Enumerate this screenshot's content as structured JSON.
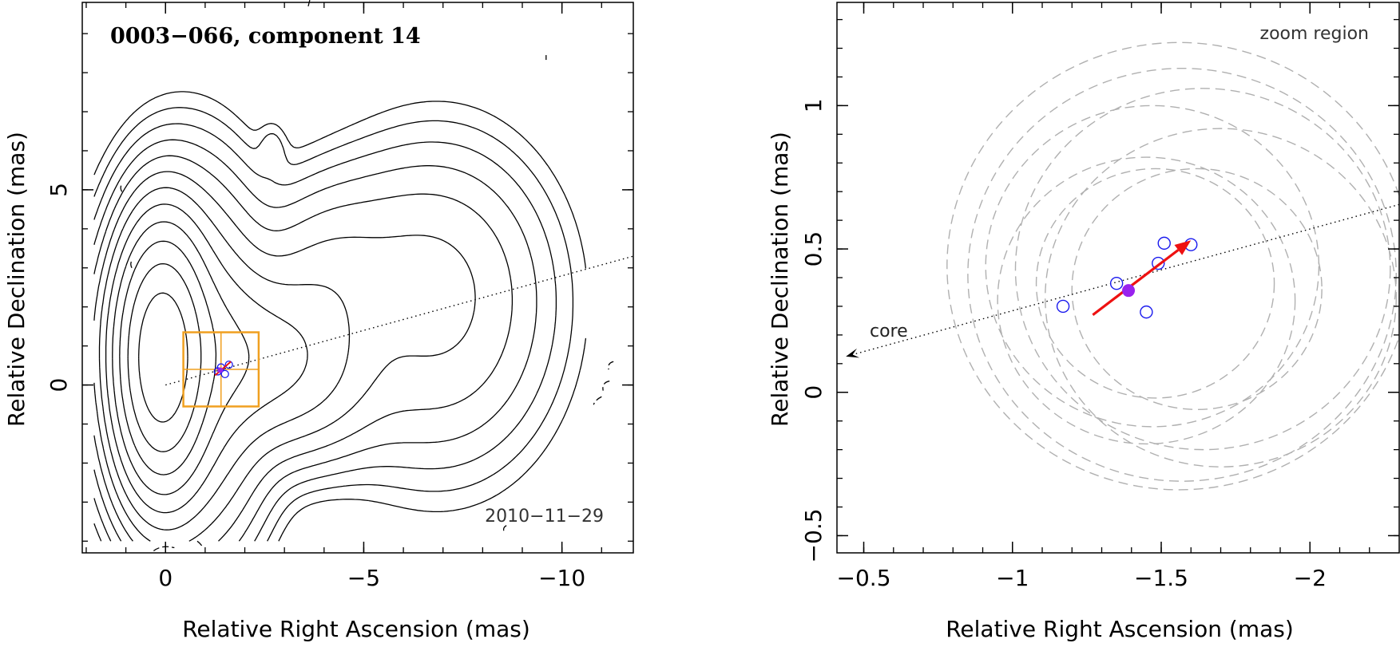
{
  "chart_data": [
    {
      "type": "contour",
      "title": "0003−066, component 14",
      "epoch": "2010−11−29",
      "xlabel": "Relative Right Ascension (mas)",
      "ylabel": "Relative Declination (mas)",
      "xlim": [
        2.1,
        -11.8
      ],
      "ylim": [
        -4.3,
        9.8
      ],
      "xticks": [
        0,
        -5,
        -10
      ],
      "xtick_labels": [
        "0",
        "−5",
        "−10"
      ],
      "yticks": [
        0,
        5
      ],
      "ytick_labels": [
        "0",
        "5"
      ],
      "contour_levels": 14,
      "contour_color": "#000000",
      "peak": {
        "x": 0.1,
        "y": 0.7
      },
      "secondary_peak": {
        "x": -6.9,
        "y": 2.0
      },
      "jet_axis": {
        "from": [
          0.0,
          0.0
        ],
        "to": [
          -11.8,
          3.3
        ],
        "style": "dotted"
      },
      "zoom_box": {
        "x_range": [
          -0.45,
          -2.35
        ],
        "y_range": [
          -0.55,
          1.35
        ],
        "color": "#f0a020"
      },
      "component_markers": [
        {
          "x": -1.32,
          "y": 0.35
        },
        {
          "x": -1.6,
          "y": 0.52
        },
        {
          "x": -1.4,
          "y": 0.45
        },
        {
          "x": -1.5,
          "y": 0.28
        }
      ],
      "grid": false
    },
    {
      "type": "scatter",
      "title": "zoom region",
      "core_label": "core",
      "xlabel": "Relative Right Ascension (mas)",
      "ylabel": "Relative Declination (mas)",
      "xlim": [
        -0.41,
        -2.3
      ],
      "ylim": [
        -0.56,
        1.36
      ],
      "xticks": [
        -0.5,
        -1,
        -1.5,
        -2
      ],
      "xtick_labels": [
        "−0.5",
        "−1",
        "−1.5",
        "−2"
      ],
      "yticks": [
        -0.5,
        0,
        0.5,
        1
      ],
      "ytick_labels": [
        "−0.5",
        "0",
        "0.5",
        "1"
      ],
      "points": [
        {
          "x": -1.17,
          "y": 0.3
        },
        {
          "x": -1.35,
          "y": 0.38
        },
        {
          "x": -1.45,
          "y": 0.28
        },
        {
          "x": -1.49,
          "y": 0.45
        },
        {
          "x": -1.51,
          "y": 0.52
        },
        {
          "x": -1.6,
          "y": 0.515
        }
      ],
      "mean_position": {
        "x": -1.39,
        "y": 0.355
      },
      "motion_vector": {
        "from": [
          -1.27,
          0.27
        ],
        "to": [
          -1.6,
          0.53
        ],
        "color": "#ee1111"
      },
      "jet_axis": {
        "from": [
          -2.3,
          0.655
        ],
        "to": [
          -0.44,
          0.125
        ],
        "style": "dotted"
      },
      "error_circles": [
        {
          "x": -1.56,
          "y": 0.44,
          "r": 0.78
        },
        {
          "x": -1.47,
          "y": 0.44,
          "r": 0.56
        },
        {
          "x": -1.57,
          "y": 0.41,
          "r": 0.72
        },
        {
          "x": -1.64,
          "y": 0.43,
          "r": 0.63
        },
        {
          "x": -1.48,
          "y": 0.38,
          "r": 0.4
        },
        {
          "x": -1.45,
          "y": 0.32,
          "r": 0.5
        },
        {
          "x": -1.62,
          "y": 0.36,
          "r": 0.42
        },
        {
          "x": -1.7,
          "y": 0.33,
          "r": 0.59
        }
      ],
      "marker_color": "#1a1aee",
      "mean_color": "#9922ee",
      "circle_color": "#b0b0b0",
      "grid": false
    }
  ]
}
